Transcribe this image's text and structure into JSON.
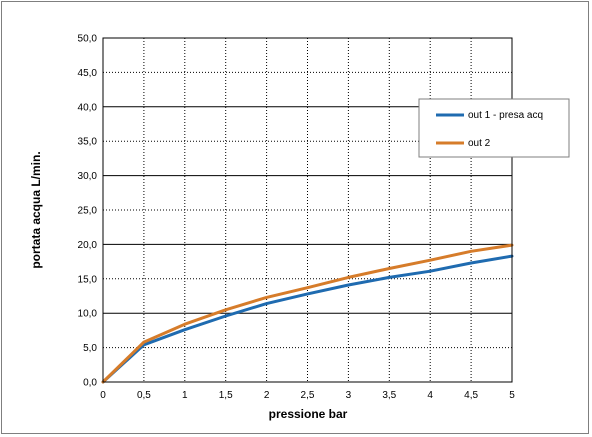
{
  "chart_data": {
    "type": "line",
    "title": "",
    "xlabel": "pressione bar",
    "ylabel": "portata acqua  L/min.",
    "x": [
      0,
      0.5,
      1,
      1.5,
      2,
      2.5,
      3,
      3.5,
      4,
      4.5,
      5
    ],
    "x_tick_labels": [
      "0",
      "0,5",
      "1",
      "1,5",
      "2",
      "2,5",
      "3",
      "3,5",
      "4",
      "4,5",
      "5"
    ],
    "y_tick_labels": [
      "0,0",
      "5,0",
      "10,0",
      "15,0",
      "20,0",
      "25,0",
      "30,0",
      "35,0",
      "40,0",
      "45,0",
      "50,0"
    ],
    "xlim": [
      0,
      5
    ],
    "ylim": [
      0,
      50
    ],
    "grid": true,
    "legend_position": "right",
    "series": [
      {
        "name": "out 1 - presa acq",
        "color": "#1f6bb0",
        "values": [
          0,
          5.4,
          7.6,
          9.6,
          11.4,
          12.8,
          14.1,
          15.2,
          16.1,
          17.3,
          18.3
        ]
      },
      {
        "name": "out 2",
        "color": "#d67c2a",
        "values": [
          0,
          5.8,
          8.4,
          10.5,
          12.3,
          13.7,
          15.2,
          16.5,
          17.7,
          19.0,
          19.9
        ]
      }
    ]
  }
}
